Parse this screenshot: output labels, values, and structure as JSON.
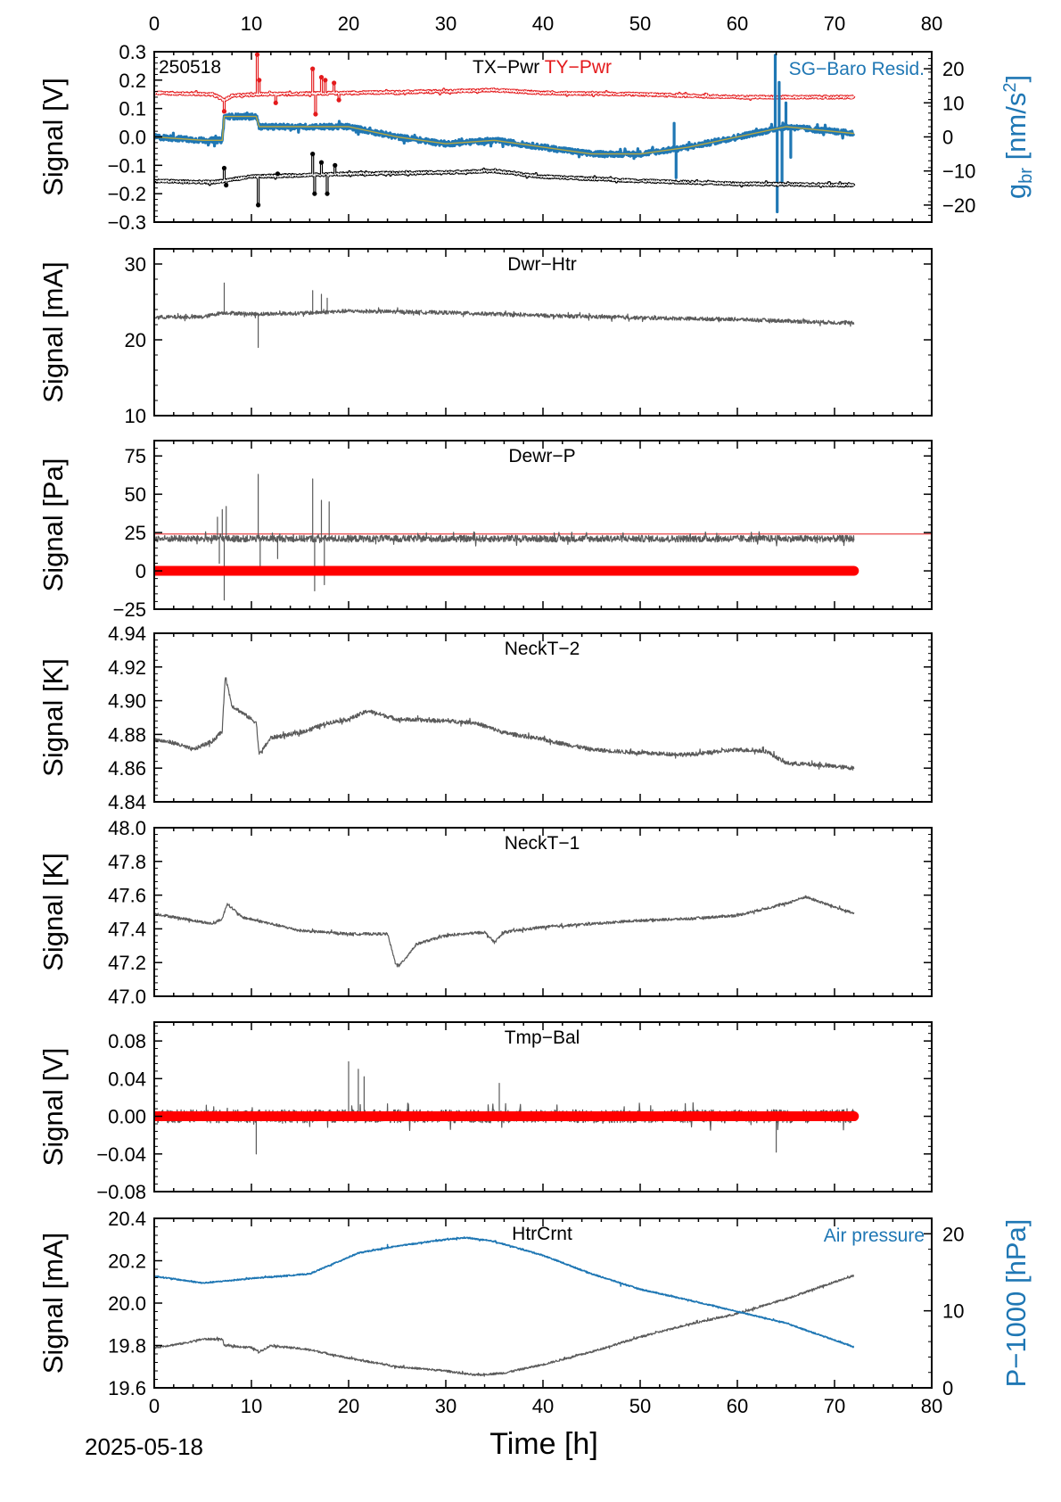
{
  "figure": {
    "date": "2025-05-18",
    "xlabel": "Time [h]",
    "xlim": [
      0,
      80
    ],
    "xticks": [
      0,
      10,
      20,
      30,
      40,
      50,
      60,
      70,
      80
    ]
  },
  "colors": {
    "tx": "#000000",
    "ty": "#e41a1c",
    "sg": "#1f77b4",
    "sg_fit": "#b5a642",
    "signal": "#5a5a5a",
    "zero_ref": "#ff0000",
    "air": "#1f77b4"
  },
  "chart_data": [
    {
      "type": "line",
      "id": "p1",
      "tag": "250518",
      "title_parts": [
        "TX−Pwr",
        "TY−Pwr"
      ],
      "right_title": "SG−Baro Resid.",
      "ylabel": "Signal [V]",
      "ylim": [
        -0.3,
        0.3
      ],
      "yticks": [
        -0.3,
        -0.2,
        -0.1,
        0.0,
        0.1,
        0.2,
        0.3
      ],
      "ytick_labels": [
        "−0.3",
        "−0.2",
        "−0.1",
        "0.0",
        "0.1",
        "0.2",
        "0.3"
      ],
      "y2label": "g",
      "y2label_sub": "br",
      "y2label_unit": " [nm/s",
      "y2label_sup": "2",
      "y2label_end": "]",
      "y2lim": [
        -25,
        25
      ],
      "y2ticks": [
        -20,
        -10,
        0,
        10,
        20
      ],
      "y2tick_labels": [
        "−20",
        "−10",
        "0",
        "10",
        "20"
      ],
      "series": [
        {
          "name": "TY−Pwr",
          "color": "ty",
          "axis": "left",
          "noise": 0.004,
          "x": [
            0,
            6,
            7.2,
            8,
            11,
            20,
            30,
            35,
            40,
            50,
            60,
            72
          ],
          "y": [
            0.155,
            0.15,
            0.13,
            0.145,
            0.15,
            0.155,
            0.16,
            0.165,
            0.155,
            0.15,
            0.14,
            0.14
          ],
          "spikes": [
            [
              7.2,
              0.09
            ],
            [
              10.6,
              0.29
            ],
            [
              10.8,
              0.2
            ],
            [
              12.5,
              0.12
            ],
            [
              16.3,
              0.24
            ],
            [
              16.6,
              0.08
            ],
            [
              17.2,
              0.21
            ],
            [
              17.6,
              0.2
            ],
            [
              18.5,
              0.19
            ],
            [
              19.0,
              0.13
            ]
          ]
        },
        {
          "name": "SG−Baro Resid.",
          "color": "sg",
          "axis": "right",
          "noise": 0.8,
          "x": [
            0,
            5,
            7,
            7.2,
            10.5,
            10.8,
            20,
            25,
            30,
            35,
            40,
            45,
            50,
            55,
            60,
            65,
            72
          ],
          "y": [
            0,
            -1,
            -1,
            6,
            6,
            3,
            3,
            0,
            -2,
            -1,
            -3,
            -5,
            -5,
            -3,
            0,
            3,
            1
          ],
          "spikes": [
            [
              48,
              -4
            ],
            [
              53.5,
              4
            ],
            [
              53.7,
              -12
            ],
            [
              63.9,
              24
            ],
            [
              64.1,
              -22
            ],
            [
              64.3,
              16
            ],
            [
              64.6,
              -14
            ],
            [
              65.0,
              10
            ],
            [
              65.5,
              -6
            ]
          ]
        },
        {
          "name": "SG fit",
          "color": "sg_fit",
          "axis": "right",
          "noise": 0,
          "x": [
            0,
            5,
            7,
            7.2,
            10.5,
            10.8,
            20,
            25,
            30,
            35,
            40,
            45,
            50,
            55,
            60,
            65,
            72
          ],
          "y": [
            0,
            -1,
            -1,
            6,
            6,
            3,
            3,
            0,
            -2,
            -1,
            -3,
            -5,
            -5,
            -3,
            0,
            3,
            1
          ],
          "spikes": []
        },
        {
          "name": "TX−Pwr",
          "color": "tx",
          "axis": "left",
          "noise": 0.004,
          "x": [
            0,
            6,
            10,
            20,
            30,
            35,
            40,
            50,
            60,
            72
          ],
          "y": [
            -0.155,
            -0.16,
            -0.14,
            -0.13,
            -0.125,
            -0.12,
            -0.14,
            -0.155,
            -0.165,
            -0.17
          ],
          "spikes": [
            [
              7.2,
              -0.11
            ],
            [
              7.4,
              -0.17
            ],
            [
              10.7,
              -0.24
            ],
            [
              12.7,
              -0.13
            ],
            [
              16.3,
              -0.06
            ],
            [
              16.5,
              -0.2
            ],
            [
              17.2,
              -0.09
            ],
            [
              17.8,
              -0.2
            ],
            [
              18.6,
              -0.1
            ]
          ]
        }
      ]
    },
    {
      "type": "line",
      "id": "p2",
      "title": "Dwr−Htr",
      "ylabel": "Signal [mA]",
      "ylim": [
        10,
        32
      ],
      "yticks": [
        10,
        20,
        30
      ],
      "ytick_labels": [
        "10",
        "20",
        "30"
      ],
      "series": [
        {
          "name": "Dwr−Htr",
          "color": "signal",
          "noise": 0.25,
          "x": [
            0,
            5,
            7,
            10,
            15,
            20,
            30,
            40,
            50,
            60,
            72
          ],
          "y": [
            23,
            23,
            23.6,
            23.4,
            23.5,
            23.8,
            23.6,
            23.2,
            22.9,
            22.7,
            22.2
          ],
          "spikes": [
            [
              7.2,
              27.5
            ],
            [
              10.7,
              19.0
            ],
            [
              16.3,
              26.5
            ],
            [
              17.2,
              26.0
            ],
            [
              17.8,
              25.5
            ]
          ]
        }
      ]
    },
    {
      "type": "line",
      "id": "p3",
      "title": "Dewr−P",
      "ylabel": "Signal [Pa]",
      "ylim": [
        -25,
        85
      ],
      "yticks": [
        -25,
        0,
        25,
        50,
        75
      ],
      "ytick_labels": [
        "−25",
        "0",
        "25",
        "50",
        "75"
      ],
      "ref_line": 24,
      "zero_line": {
        "from": 0,
        "to": 72,
        "value": 0
      },
      "series": [
        {
          "name": "Dewr−P",
          "color": "signal",
          "noise": 2.2,
          "x": [
            0,
            72
          ],
          "y": [
            21,
            21
          ],
          "spikes": [
            [
              6.5,
              35
            ],
            [
              6.7,
              5
            ],
            [
              7.0,
              40
            ],
            [
              7.2,
              -19
            ],
            [
              7.4,
              42
            ],
            [
              10.7,
              63
            ],
            [
              10.9,
              3
            ],
            [
              12.7,
              8
            ],
            [
              16.3,
              60
            ],
            [
              16.5,
              -13
            ],
            [
              17.2,
              46
            ],
            [
              17.5,
              -9
            ],
            [
              18.0,
              45
            ]
          ]
        }
      ]
    },
    {
      "type": "line",
      "id": "p4",
      "title": "NeckT−2",
      "ylabel": "Signal [K]",
      "ylim": [
        4.84,
        4.94
      ],
      "yticks": [
        4.84,
        4.86,
        4.88,
        4.9,
        4.92,
        4.94
      ],
      "ytick_labels": [
        "4.84",
        "4.86",
        "4.88",
        "4.90",
        "4.92",
        "4.94"
      ],
      "series": [
        {
          "name": "NeckT−2",
          "color": "signal",
          "noise": 0.0012,
          "x": [
            0,
            2,
            4,
            6,
            7,
            7.3,
            8,
            9,
            10.5,
            10.8,
            12,
            15,
            18,
            20,
            22,
            25,
            30,
            33,
            36,
            40,
            45,
            50,
            55,
            60,
            63,
            65,
            68,
            72
          ],
          "y": [
            4.877,
            4.875,
            4.871,
            4.876,
            4.882,
            4.915,
            4.897,
            4.893,
            4.887,
            4.868,
            4.878,
            4.881,
            4.887,
            4.889,
            4.894,
            4.889,
            4.888,
            4.887,
            4.881,
            4.877,
            4.871,
            4.869,
            4.868,
            4.871,
            4.87,
            4.863,
            4.862,
            4.86
          ],
          "spikes": []
        }
      ]
    },
    {
      "type": "line",
      "id": "p5",
      "title": "NeckT−1",
      "ylabel": "Signal [K]",
      "ylim": [
        47.0,
        48.0
      ],
      "yticks": [
        47.0,
        47.2,
        47.4,
        47.6,
        47.8,
        48.0
      ],
      "ytick_labels": [
        "47.0",
        "47.2",
        "47.4",
        "47.6",
        "47.8",
        "48.0"
      ],
      "series": [
        {
          "name": "NeckT−1",
          "color": "signal",
          "noise": 0.008,
          "x": [
            0,
            3,
            6,
            7,
            7.5,
            9,
            12,
            15,
            20,
            24,
            24.8,
            25.2,
            27,
            30,
            34,
            35,
            36,
            40,
            45,
            50,
            55,
            60,
            65,
            67,
            72
          ],
          "y": [
            47.49,
            47.46,
            47.43,
            47.46,
            47.55,
            47.47,
            47.43,
            47.39,
            47.37,
            47.37,
            47.2,
            47.18,
            47.31,
            47.36,
            47.38,
            47.32,
            47.38,
            47.41,
            47.43,
            47.45,
            47.46,
            47.48,
            47.55,
            47.59,
            47.49
          ],
          "spikes": []
        }
      ]
    },
    {
      "type": "line",
      "id": "p6",
      "title": "Tmp−Bal",
      "ylabel": "Signal [V]",
      "ylim": [
        -0.08,
        0.1
      ],
      "yticks": [
        -0.08,
        -0.04,
        0.0,
        0.04,
        0.08
      ],
      "ytick_labels": [
        "−0.08",
        "−0.04",
        "0.00",
        "0.04",
        "0.08"
      ],
      "zero_line": {
        "from": 0,
        "to": 72,
        "value": 0
      },
      "series": [
        {
          "name": "Tmp−Bal",
          "color": "signal",
          "noise": 0.007,
          "x": [
            0,
            72
          ],
          "y": [
            0.0,
            0.0
          ],
          "spikes": [
            [
              20.0,
              0.058
            ],
            [
              21.0,
              0.05
            ],
            [
              21.6,
              0.042
            ],
            [
              35.5,
              0.035
            ],
            [
              64.0,
              -0.038
            ],
            [
              10.5,
              -0.04
            ]
          ]
        }
      ]
    },
    {
      "type": "line",
      "id": "p7",
      "title": "HtrCrnt",
      "right_title": "Air pressure",
      "ylabel": "Signal [mA]",
      "ylim": [
        19.6,
        20.4
      ],
      "yticks": [
        19.6,
        19.8,
        20.0,
        20.2,
        20.4
      ],
      "ytick_labels": [
        "19.6",
        "19.8",
        "20.0",
        "20.2",
        "20.4"
      ],
      "y2label": "P−1000 [hPa]",
      "y2lim": [
        0,
        22
      ],
      "y2ticks": [
        0,
        10,
        20
      ],
      "y2tick_labels": [
        "0",
        "10",
        "20"
      ],
      "series": [
        {
          "name": "HtrCrnt",
          "color": "signal",
          "axis": "left",
          "noise": 0.005,
          "x": [
            0,
            3,
            5,
            7,
            7.2,
            10,
            10.8,
            12,
            16,
            20,
            25,
            30,
            33,
            36,
            40,
            45,
            50,
            55,
            60,
            65,
            70,
            72
          ],
          "y": [
            19.79,
            19.81,
            19.83,
            19.83,
            19.8,
            19.79,
            19.77,
            19.8,
            19.78,
            19.74,
            19.7,
            19.68,
            19.66,
            19.67,
            19.71,
            19.77,
            19.84,
            19.9,
            19.95,
            20.02,
            20.1,
            20.13
          ],
          "spikes": []
        },
        {
          "name": "Air pressure",
          "color": "air",
          "axis": "right",
          "noise": 0.08,
          "x": [
            0,
            5,
            10,
            16,
            21,
            25,
            29,
            32,
            35,
            40,
            45,
            50,
            55,
            60,
            65,
            72
          ],
          "y": [
            14.5,
            13.6,
            14.2,
            14.8,
            17.5,
            18.4,
            19.1,
            19.5,
            19.0,
            17.2,
            14.8,
            12.8,
            11.4,
            9.9,
            8.4,
            5.3
          ],
          "spikes": [
            [
              24.0,
              18.6
            ],
            [
              48.0,
              13.2
            ]
          ]
        }
      ]
    }
  ]
}
